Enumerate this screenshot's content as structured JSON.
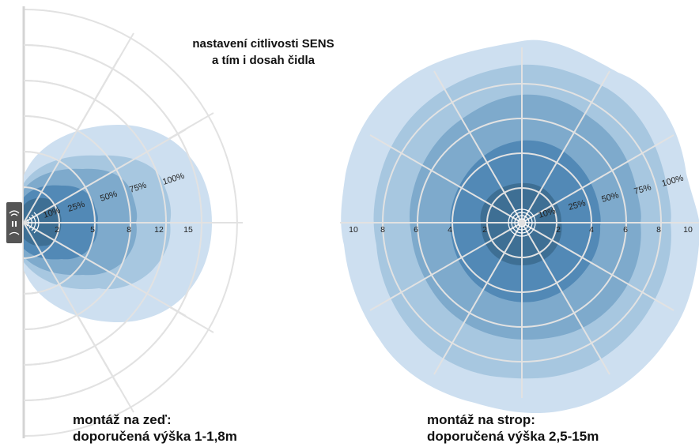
{
  "heading": {
    "line1": "nastavení citlivosti SENS",
    "line2": "a tím i dosah čidla"
  },
  "wall": {
    "caption_line1": "montáž na zeď:",
    "caption_line2": "doporučená výška 1-1,8m",
    "percent_labels": [
      "10%",
      "25%",
      "50%",
      "75%",
      "100%"
    ],
    "range_ticks": [
      "2",
      "5",
      "8",
      "12",
      "15"
    ]
  },
  "ceiling": {
    "caption_line1": "montáž na strop:",
    "caption_line2": "doporučená výška 2,5-15m",
    "percent_labels": [
      "10%",
      "25%",
      "50%",
      "75%",
      "100%"
    ],
    "left_ticks": [
      "10",
      "8",
      "6",
      "4",
      "2"
    ],
    "right_ticks": [
      "2",
      "4",
      "6",
      "8",
      "10"
    ]
  },
  "colors": {
    "zone_100": "#cddff0",
    "zone_75": "#a7c7e0",
    "zone_50": "#7eaacc",
    "zone_25": "#5289b6",
    "zone_10": "#3e6f94",
    "grid": "#e2e2e2",
    "sensor": "#555555"
  },
  "icons": [
    "sensor-device-icon",
    "wifi-icon"
  ]
}
